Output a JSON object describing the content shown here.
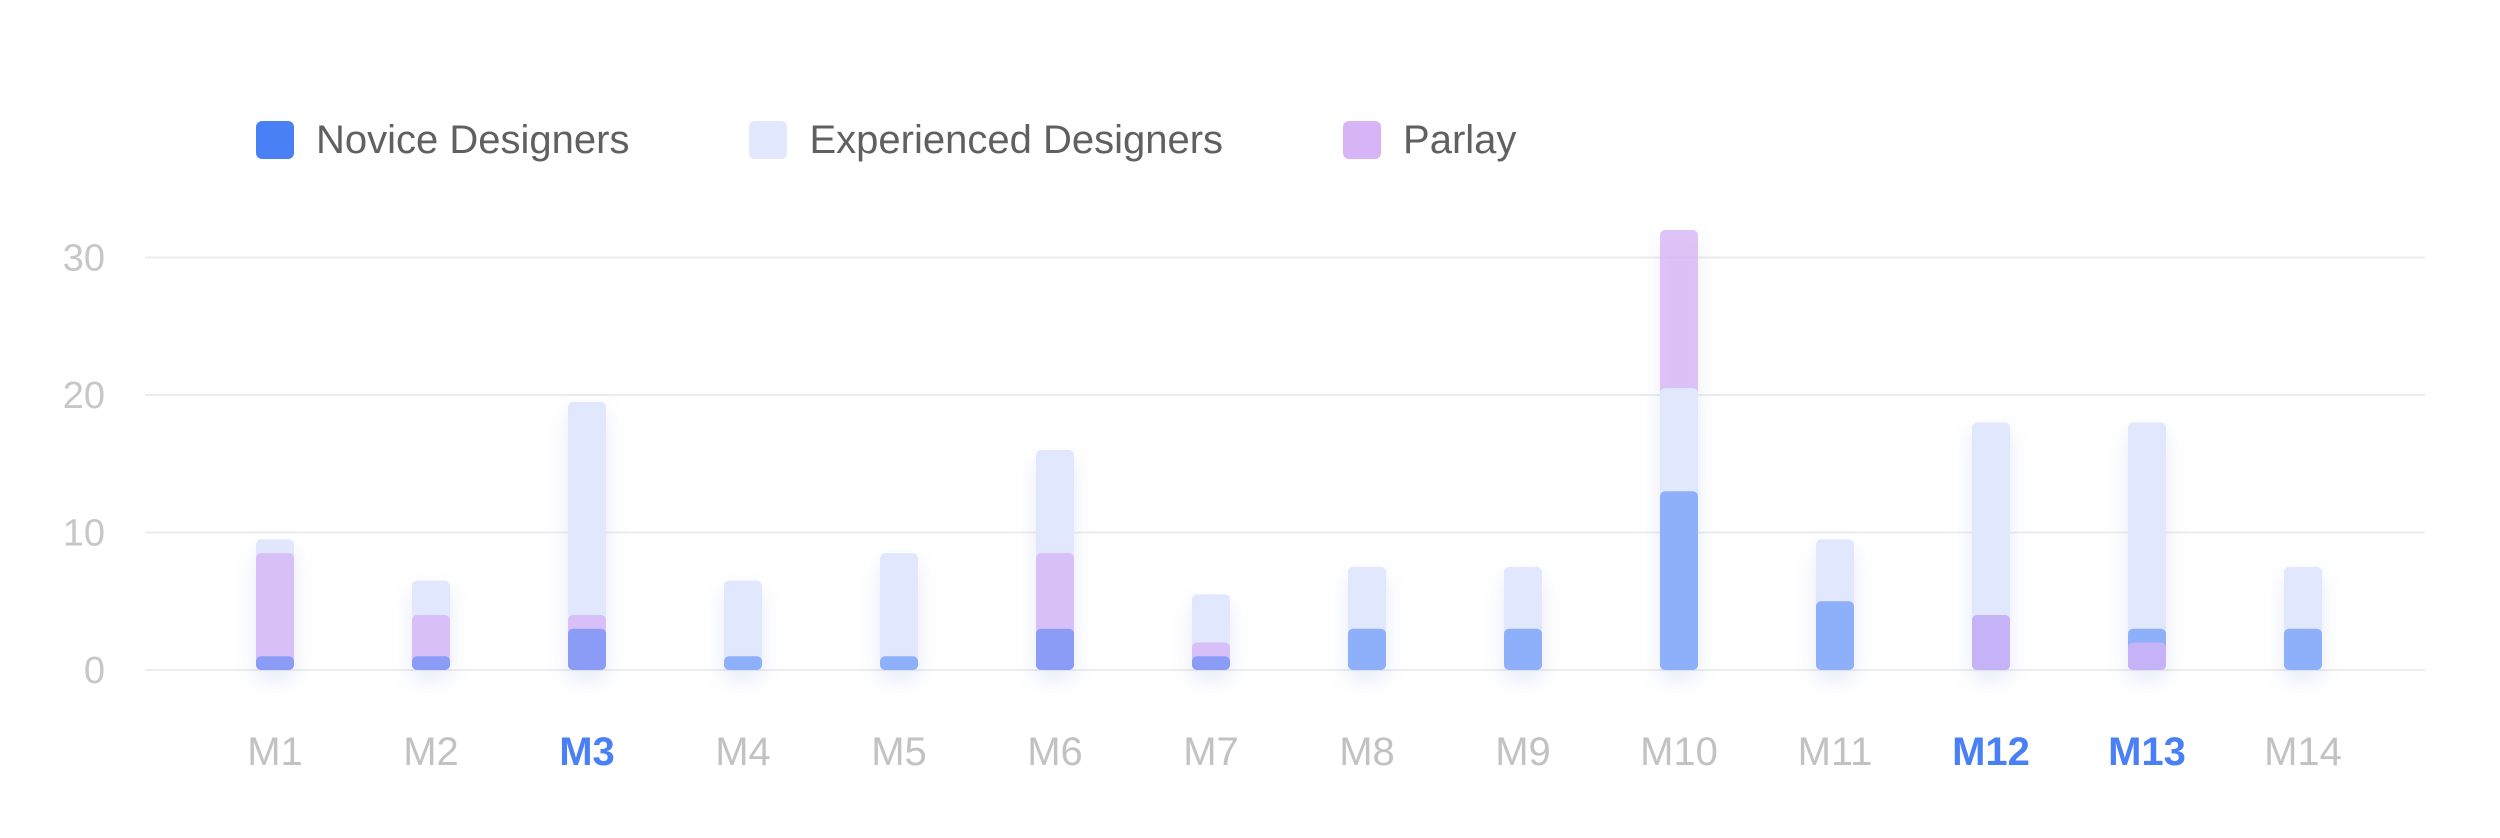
{
  "chart_data": {
    "type": "bar",
    "title": "",
    "xlabel": "",
    "ylabel": "",
    "ylim": [
      0,
      32
    ],
    "yticks": [
      0,
      10,
      20,
      30
    ],
    "grid": true,
    "legend_position": "top-left",
    "categories": [
      "M1",
      "M2",
      "M3",
      "M4",
      "M5",
      "M6",
      "M7",
      "M8",
      "M9",
      "M10",
      "M11",
      "M12",
      "M13",
      "M14"
    ],
    "highlighted_categories": [
      "M3",
      "M12",
      "M13"
    ],
    "series": [
      {
        "name": "Novice Designers",
        "color": "#4a80f5",
        "values": [
          1,
          1,
          3,
          1,
          1,
          3,
          1,
          3,
          3,
          13,
          5,
          4,
          3,
          3
        ]
      },
      {
        "name": "Experienced Designers",
        "color": "#e1e8fd",
        "values": [
          9.5,
          6.5,
          19.5,
          6.5,
          8.5,
          16,
          5.5,
          7.5,
          7.5,
          20.5,
          9.5,
          18,
          18,
          7.5
        ]
      },
      {
        "name": "Parlay",
        "color": "#d6b4f5",
        "values": [
          8.5,
          4,
          4,
          0,
          0,
          8.5,
          2,
          0,
          0,
          32,
          0,
          4,
          2,
          0
        ]
      }
    ]
  }
}
